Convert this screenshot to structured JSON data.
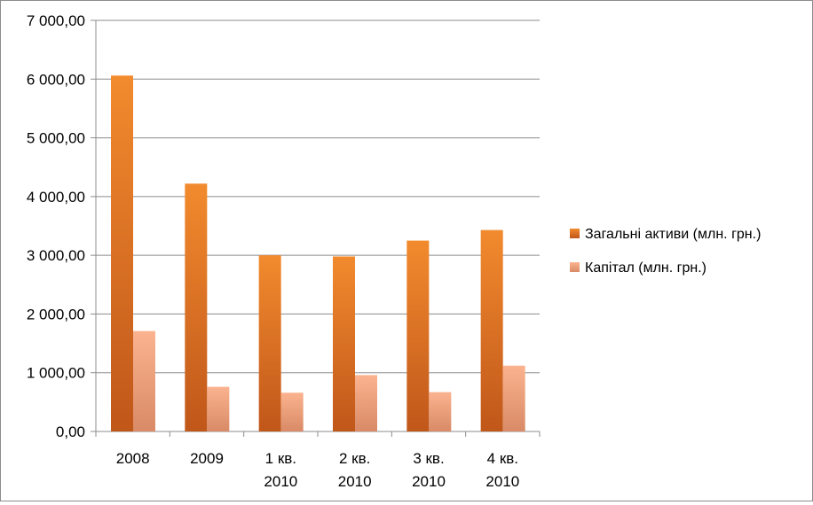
{
  "chart_data": {
    "type": "bar",
    "categories": [
      [
        "2008"
      ],
      [
        "2009"
      ],
      [
        "1 кв.",
        "2010"
      ],
      [
        "2 кв.",
        "2010"
      ],
      [
        "3 кв.",
        "2010"
      ],
      [
        "4 кв.",
        "2010"
      ]
    ],
    "series": [
      {
        "name": "Загальні активи (млн. грн.)",
        "values": [
          6060,
          4220,
          3000,
          2980,
          3250,
          3430
        ]
      },
      {
        "name": "Капітал (млн. грн.)",
        "values": [
          1710,
          760,
          660,
          960,
          670,
          1120
        ]
      }
    ],
    "ylim": [
      0,
      7000
    ],
    "yticks": [
      0,
      1000,
      2000,
      3000,
      4000,
      5000,
      6000,
      7000
    ],
    "ytick_labels": [
      "0,00",
      "1 000,00",
      "2 000,00",
      "3 000,00",
      "4 000,00",
      "5 000,00",
      "6 000,00",
      "7 000,00"
    ],
    "grid": true,
    "legend_position": "right",
    "colors": {
      "series1_dark": "#c0571a",
      "series1_light": "#f28a2e",
      "series2_dark": "#d98a66",
      "series2_light": "#fbb38f",
      "grid": "#8c8c8c"
    }
  }
}
